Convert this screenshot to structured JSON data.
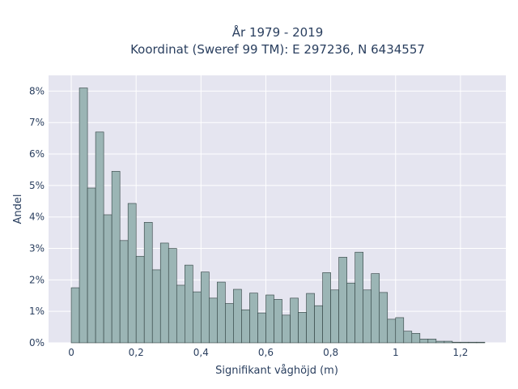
{
  "chart_data": {
    "type": "bar",
    "title_lines": [
      "År 1979 - 2019",
      "Koordinat (Sweref 99 TM): E 297236, N 6434557"
    ],
    "xlabel": "Signifikant våghöjd (m)",
    "ylabel": "Andel",
    "xlim": [
      -0.07,
      1.34
    ],
    "ylim": [
      0,
      8.5
    ],
    "x_ticks": [
      0,
      0.2,
      0.4,
      0.6,
      0.8,
      1.0,
      1.2
    ],
    "x_tick_labels": [
      "0",
      "0,2",
      "0,4",
      "0,6",
      "0,8",
      "1",
      "1,2"
    ],
    "y_ticks": [
      0,
      1,
      2,
      3,
      4,
      5,
      6,
      7,
      8
    ],
    "y_tick_labels": [
      "0%",
      "1%",
      "2%",
      "3%",
      "4%",
      "5%",
      "6%",
      "7%",
      "8%"
    ],
    "bin_width": 0.025,
    "x": [
      0.0,
      0.025,
      0.05,
      0.075,
      0.1,
      0.125,
      0.15,
      0.175,
      0.2,
      0.225,
      0.25,
      0.275,
      0.3,
      0.325,
      0.35,
      0.375,
      0.4,
      0.425,
      0.45,
      0.475,
      0.5,
      0.525,
      0.55,
      0.575,
      0.6,
      0.625,
      0.65,
      0.675,
      0.7,
      0.725,
      0.75,
      0.775,
      0.8,
      0.825,
      0.85,
      0.875,
      0.9,
      0.925,
      0.95,
      0.975,
      1.0,
      1.025,
      1.05,
      1.075,
      1.1,
      1.125,
      1.15,
      1.175,
      1.2,
      1.225,
      1.25
    ],
    "values": [
      1.75,
      8.1,
      4.92,
      6.7,
      4.07,
      5.45,
      3.25,
      4.43,
      2.75,
      3.83,
      2.32,
      3.17,
      3.0,
      1.83,
      2.47,
      1.62,
      2.25,
      1.42,
      1.93,
      1.25,
      1.7,
      1.05,
      1.58,
      0.95,
      1.52,
      1.38,
      0.88,
      1.42,
      0.97,
      1.57,
      1.18,
      2.23,
      1.68,
      2.72,
      1.9,
      2.88,
      1.68,
      2.2,
      1.6,
      0.75,
      0.8,
      0.37,
      0.3,
      0.12,
      0.12,
      0.05,
      0.05,
      0.02,
      0.02,
      0.02,
      0.02
    ],
    "grid": true,
    "colors": {
      "bar_fill": "#9bb5b5",
      "bar_stroke": "#2f3f3f",
      "plot_bg": "#e5e5f0",
      "grid": "#ffffff"
    }
  }
}
